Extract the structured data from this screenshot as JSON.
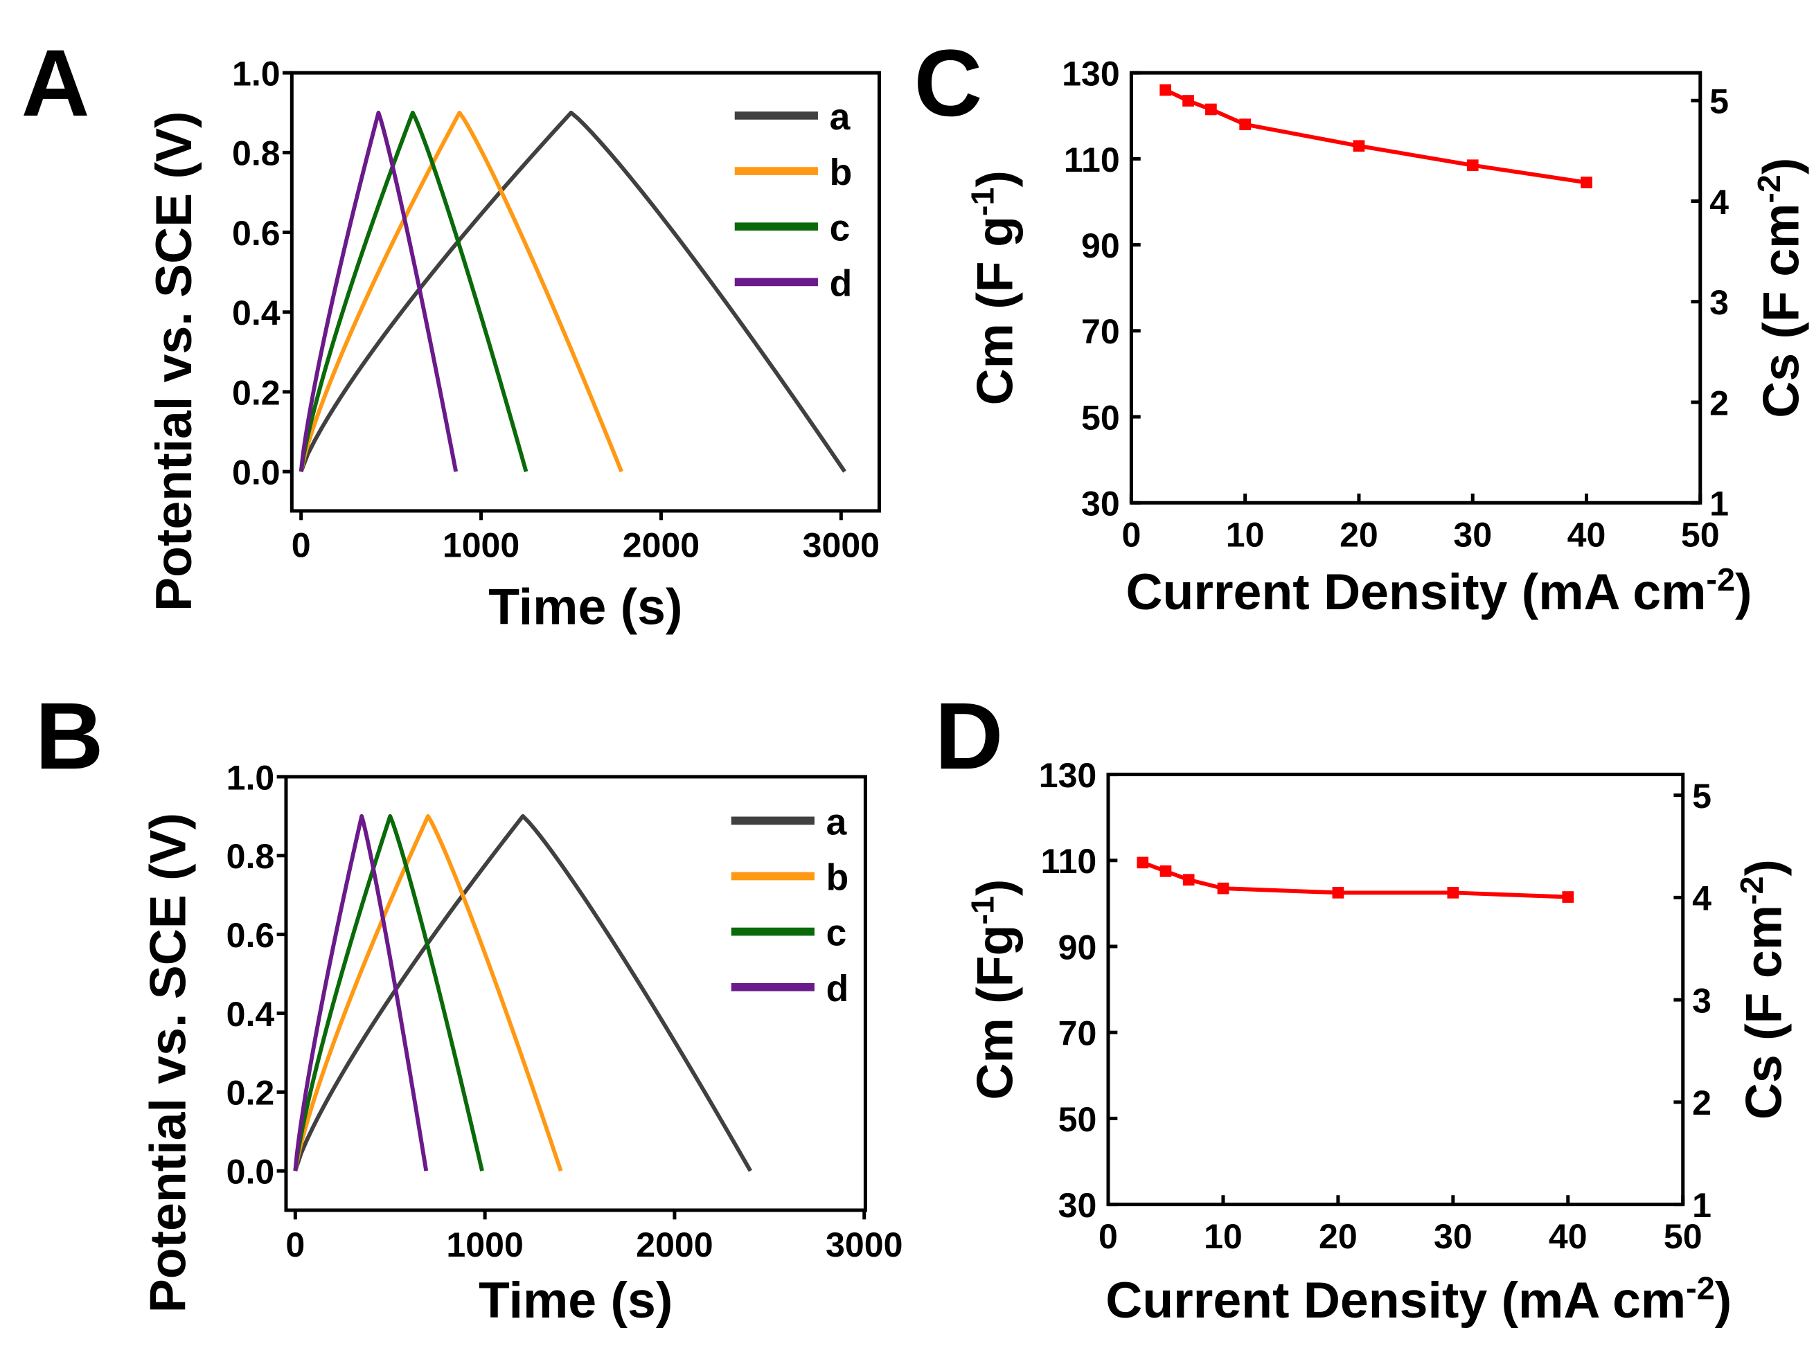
{
  "chart_data": [
    {
      "panel": "A",
      "type": "line",
      "xlabel": "Time (s)",
      "ylabel": "Potential vs. SCE (V)",
      "xlim": [
        0,
        3000
      ],
      "ylim": [
        -0.1,
        1.0
      ],
      "xticks": [
        "0",
        "1000",
        "2000",
        "3000"
      ],
      "yticks": [
        "0.0",
        "0.2",
        "0.4",
        "0.6",
        "0.8",
        "1.0"
      ],
      "legend_position": "top-right",
      "series": [
        {
          "name": "a",
          "color": "#404040",
          "peak_time": 1500,
          "end_time": 3020,
          "peak_v": 0.9
        },
        {
          "name": "b",
          "color": "#ff9914",
          "peak_time": 880,
          "end_time": 1780,
          "peak_v": 0.9
        },
        {
          "name": "c",
          "color": "#0a6a0a",
          "peak_time": 620,
          "end_time": 1250,
          "peak_v": 0.9
        },
        {
          "name": "d",
          "color": "#6a1a8a",
          "peak_time": 430,
          "end_time": 860,
          "peak_v": 0.9
        }
      ]
    },
    {
      "panel": "B",
      "type": "line",
      "xlabel": "Time (s)",
      "ylabel": "Potential vs. SCE (V)",
      "xlim": [
        0,
        3000
      ],
      "ylim": [
        -0.1,
        1.0
      ],
      "xticks": [
        "0",
        "1000",
        "2000",
        "3000"
      ],
      "yticks": [
        "0.0",
        "0.2",
        "0.4",
        "0.6",
        "0.8",
        "1.0"
      ],
      "legend_position": "top-right",
      "series": [
        {
          "name": "a",
          "color": "#404040",
          "peak_time": 1200,
          "end_time": 2400,
          "peak_v": 0.9
        },
        {
          "name": "b",
          "color": "#ff9914",
          "peak_time": 700,
          "end_time": 1400,
          "peak_v": 0.9
        },
        {
          "name": "c",
          "color": "#0a6a0a",
          "peak_time": 500,
          "end_time": 985,
          "peak_v": 0.9
        },
        {
          "name": "d",
          "color": "#6a1a8a",
          "peak_time": 350,
          "end_time": 690,
          "peak_v": 0.9
        }
      ]
    },
    {
      "panel": "C",
      "type": "line",
      "xlabel": "Current Density (mA cm",
      "xlabel_sup": "-2",
      "ylabel": "Cm (F g",
      "ylabel_sup": "-1",
      "y2label": "Cs (F cm",
      "y2label_sup": "-2",
      "xlim": [
        0,
        50
      ],
      "ylim": [
        30,
        130
      ],
      "y2lim": [
        1,
        5
      ],
      "xticks": [
        "0",
        "10",
        "20",
        "30",
        "40",
        "50"
      ],
      "yticks": [
        "30",
        "50",
        "70",
        "90",
        "110",
        "130"
      ],
      "y2ticks": [
        "1",
        "2",
        "3",
        "4",
        "5"
      ],
      "color": "#ff0000",
      "x": [
        3,
        5,
        7,
        10,
        20,
        30,
        40
      ],
      "y": [
        126,
        123.5,
        121.5,
        118,
        113,
        108.5,
        104.5
      ]
    },
    {
      "panel": "D",
      "type": "line",
      "xlabel": "Current Density (mA cm",
      "xlabel_sup": "-2",
      "ylabel": "Cm (Fg",
      "ylabel_sup": "-1",
      "y2label": "Cs (F cm",
      "y2label_sup": "-2",
      "xlim": [
        0,
        50
      ],
      "ylim": [
        30,
        130
      ],
      "y2lim": [
        1,
        5
      ],
      "xticks": [
        "0",
        "10",
        "20",
        "30",
        "40",
        "50"
      ],
      "yticks": [
        "30",
        "50",
        "70",
        "90",
        "110",
        "130"
      ],
      "y2ticks": [
        "1",
        "2",
        "3",
        "4",
        "5"
      ],
      "color": "#ff0000",
      "x": [
        3,
        5,
        7,
        10,
        20,
        30,
        40
      ],
      "y": [
        109.5,
        107.5,
        105.5,
        103.5,
        102.5,
        102.5,
        101.5
      ]
    }
  ]
}
